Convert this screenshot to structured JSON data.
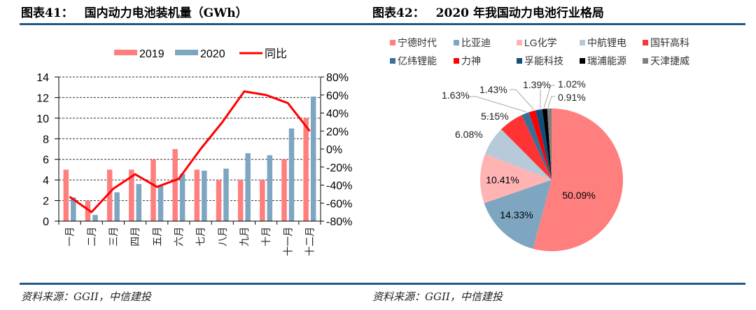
{
  "left_panel": {
    "title_prefix": "图表41：",
    "title": "国内动力电池装机量（GWh）",
    "source": "资料来源：GGII，中信建投"
  },
  "right_panel": {
    "title_prefix": "图表42：",
    "title": "2020 年我国动力电池行业格局",
    "source": "资料来源：GGII，中信建投"
  },
  "chart_data": [
    {
      "type": "bar",
      "title": "国内动力电池装机量（GWh）",
      "categories": [
        "一月",
        "二月",
        "三月",
        "四月",
        "五月",
        "六月",
        "七月",
        "八月",
        "九月",
        "十月",
        "十一月",
        "十二月"
      ],
      "series": [
        {
          "name": "2019",
          "type": "bar",
          "axis": "left",
          "color": "#ff7f7f",
          "values": [
            5,
            2,
            5,
            5,
            6,
            7,
            5,
            4,
            4,
            4,
            6,
            10
          ]
        },
        {
          "name": "2020",
          "type": "bar",
          "axis": "left",
          "color": "#7ea6c1",
          "values": [
            2.3,
            0.6,
            2.8,
            3.6,
            3.4,
            4.6,
            4.9,
            5.1,
            6.6,
            6.4,
            9.0,
            12.1
          ]
        },
        {
          "name": "同比",
          "type": "line",
          "axis": "right",
          "color": "#ff0000",
          "values": [
            -53,
            -70,
            -44,
            -28,
            -42,
            -33,
            0,
            30,
            64,
            60,
            51,
            20
          ]
        }
      ],
      "ylim_left": [
        0,
        14
      ],
      "yticks_left": [
        "0",
        "2",
        "4",
        "6",
        "8",
        "10",
        "12",
        "14"
      ],
      "ylim_right": [
        -80,
        80
      ],
      "yticks_right": [
        "-80%",
        "-60%",
        "-40%",
        "-20%",
        "0%",
        "20%",
        "40%",
        "60%",
        "80%"
      ],
      "grid": true,
      "legend": "top"
    },
    {
      "type": "pie",
      "title": "2020 年我国动力电池行业格局",
      "labels": [
        "宁德时代",
        "比亚迪",
        "LG化学",
        "中航锂电",
        "国轩高科",
        "亿纬锂能",
        "力神",
        "孚能科技",
        "瑞浦能源",
        "天津捷威"
      ],
      "values": [
        50.09,
        14.33,
        10.41,
        6.08,
        5.15,
        1.63,
        1.43,
        1.39,
        1.02,
        0.91
      ],
      "value_labels": [
        "50.09%",
        "14.33%",
        "10.41%",
        "6.08%",
        "5.15%",
        "1.63%",
        "1.43%",
        "1.39%",
        "1.02%",
        "0.91%"
      ],
      "colors": [
        "#ff7f7f",
        "#7ea6c1",
        "#ffb3b3",
        "#b7cad9",
        "#ff3333",
        "#3b6f97",
        "#ff0000",
        "#104e7c",
        "#000000",
        "#808080"
      ],
      "legend": "top"
    }
  ]
}
